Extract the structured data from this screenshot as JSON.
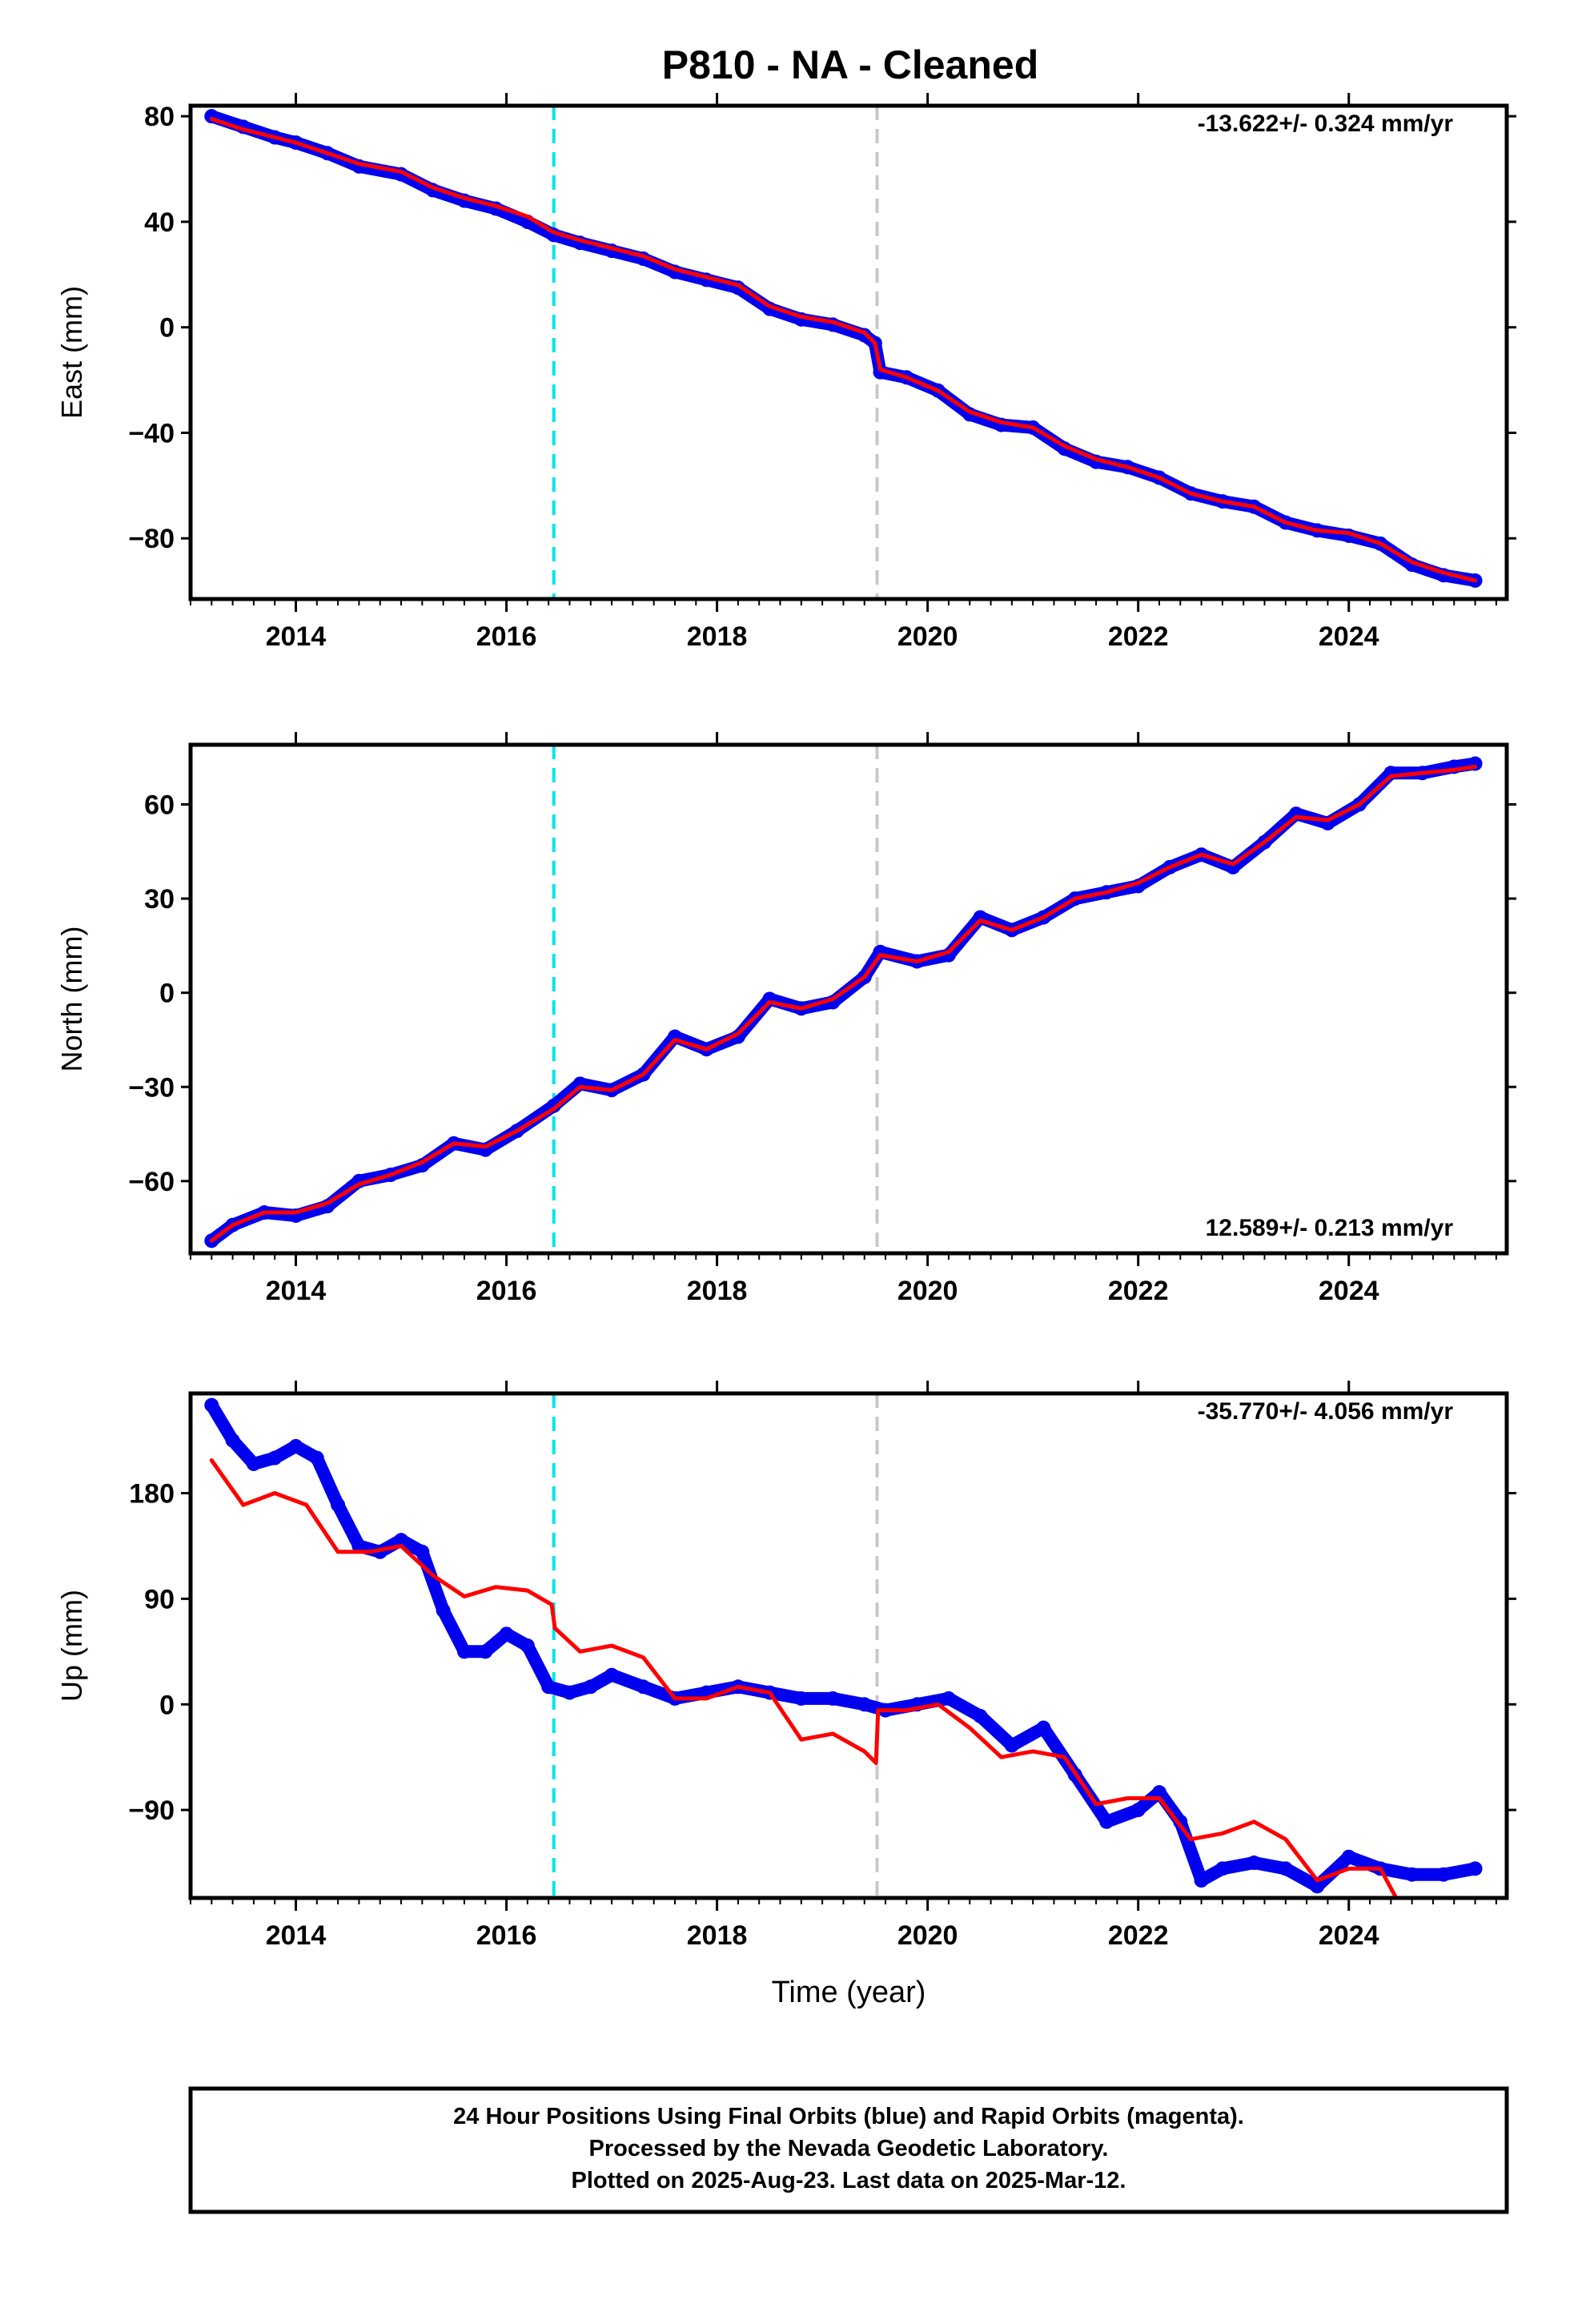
{
  "title": "P810  - NA - Cleaned",
  "colors": {
    "observed": "#0000ee",
    "model": "#ff0000",
    "event_1": "#00e5ee",
    "event_2": "#c8c8c8"
  },
  "chart_data": [
    {
      "type": "scatter",
      "ylabel": "East (mm)",
      "rate_label": "-13.622+/- 0.324 mm/yr",
      "rate_position": "top-right",
      "xlim": [
        2013.0,
        2025.5
      ],
      "ylim": [
        -103,
        84
      ],
      "yticks": [
        80,
        40,
        0,
        -40,
        -80
      ],
      "xticks": [
        2014,
        2016,
        2018,
        2020,
        2022,
        2024
      ],
      "events": [
        2016.45,
        2019.52
      ],
      "series": [
        {
          "role": "observed",
          "x": [
            2013.2,
            2013.5,
            2013.8,
            2014.0,
            2014.3,
            2014.6,
            2015.0,
            2015.3,
            2015.6,
            2015.9,
            2016.2,
            2016.45,
            2016.7,
            2017.0,
            2017.3,
            2017.6,
            2017.9,
            2018.2,
            2018.5,
            2018.8,
            2019.1,
            2019.4,
            2019.5,
            2019.55,
            2019.8,
            2020.1,
            2020.4,
            2020.7,
            2021.0,
            2021.3,
            2021.6,
            2021.9,
            2022.2,
            2022.5,
            2022.8,
            2023.1,
            2023.4,
            2023.7,
            2024.0,
            2024.3,
            2024.6,
            2024.9,
            2025.2
          ],
          "y": [
            80,
            76,
            72,
            70,
            66,
            61,
            58,
            52,
            48,
            45,
            40,
            35,
            32,
            29,
            26,
            21,
            18,
            15,
            7,
            3,
            1,
            -3,
            -6,
            -17,
            -19,
            -24,
            -33,
            -37,
            -38,
            -46,
            -51,
            -53,
            -57,
            -63,
            -66,
            -68,
            -74,
            -77,
            -79,
            -82,
            -90,
            -94,
            -96
          ]
        },
        {
          "role": "model",
          "x": [
            2013.2,
            2013.5,
            2013.8,
            2014.0,
            2014.3,
            2014.6,
            2015.0,
            2015.3,
            2015.6,
            2015.9,
            2016.2,
            2016.45,
            2016.7,
            2017.0,
            2017.3,
            2017.6,
            2017.9,
            2018.2,
            2018.5,
            2018.8,
            2019.1,
            2019.4,
            2019.5,
            2019.55,
            2019.8,
            2020.1,
            2020.4,
            2020.7,
            2021.0,
            2021.3,
            2021.6,
            2021.9,
            2022.2,
            2022.5,
            2022.8,
            2023.1,
            2023.4,
            2023.7,
            2024.0,
            2024.3,
            2024.6,
            2024.9,
            2025.2
          ],
          "y": [
            79,
            75,
            72,
            70,
            66,
            62,
            59,
            53,
            49,
            46,
            42,
            36,
            33,
            30,
            27,
            22,
            19,
            16,
            8,
            4,
            2,
            -2,
            -6,
            -16,
            -19,
            -24,
            -32,
            -36,
            -38,
            -45,
            -50,
            -53,
            -57,
            -63,
            -66,
            -68,
            -74,
            -77,
            -78,
            -82,
            -89,
            -93,
            -96
          ]
        }
      ]
    },
    {
      "type": "scatter",
      "ylabel": "North (mm)",
      "rate_label": "12.589+/- 0.213 mm/yr",
      "rate_position": "bottom-right",
      "xlim": [
        2013.0,
        2025.5
      ],
      "ylim": [
        -83,
        79
      ],
      "yticks": [
        60,
        30,
        0,
        -30,
        -60
      ],
      "xticks": [
        2014,
        2016,
        2018,
        2020,
        2022,
        2024
      ],
      "events": [
        2016.45,
        2019.52
      ],
      "series": [
        {
          "role": "observed",
          "x": [
            2013.2,
            2013.4,
            2013.7,
            2014.0,
            2014.3,
            2014.6,
            2014.9,
            2015.2,
            2015.5,
            2015.8,
            2016.1,
            2016.45,
            2016.7,
            2017.0,
            2017.3,
            2017.6,
            2017.9,
            2018.2,
            2018.5,
            2018.8,
            2019.1,
            2019.4,
            2019.55,
            2019.9,
            2020.2,
            2020.5,
            2020.8,
            2021.1,
            2021.4,
            2021.7,
            2022.0,
            2022.3,
            2022.6,
            2022.9,
            2023.2,
            2023.5,
            2023.8,
            2024.1,
            2024.4,
            2024.7,
            2025.0,
            2025.2
          ],
          "y": [
            -79,
            -74,
            -70,
            -71,
            -68,
            -60,
            -58,
            -55,
            -48,
            -50,
            -44,
            -36,
            -29,
            -31,
            -26,
            -14,
            -18,
            -14,
            -2,
            -5,
            -3,
            5,
            13,
            10,
            12,
            24,
            20,
            24,
            30,
            32,
            34,
            40,
            44,
            40,
            48,
            57,
            54,
            60,
            70,
            70,
            72,
            73
          ]
        },
        {
          "role": "model",
          "x": [
            2013.2,
            2013.4,
            2013.7,
            2014.0,
            2014.3,
            2014.6,
            2014.9,
            2015.2,
            2015.5,
            2015.8,
            2016.1,
            2016.45,
            2016.7,
            2017.0,
            2017.3,
            2017.6,
            2017.9,
            2018.2,
            2018.5,
            2018.8,
            2019.1,
            2019.4,
            2019.55,
            2019.9,
            2020.2,
            2020.5,
            2020.8,
            2021.1,
            2021.4,
            2021.7,
            2022.0,
            2022.3,
            2022.6,
            2022.9,
            2023.2,
            2023.5,
            2023.8,
            2024.1,
            2024.4,
            2024.7,
            2025.0,
            2025.2
          ],
          "y": [
            -79,
            -74,
            -70,
            -70,
            -67,
            -61,
            -58,
            -54,
            -48,
            -49,
            -44,
            -37,
            -30,
            -31,
            -26,
            -15,
            -18,
            -13,
            -3,
            -5,
            -2,
            5,
            12,
            10,
            13,
            23,
            20,
            24,
            30,
            32,
            35,
            40,
            44,
            41,
            48,
            56,
            55,
            60,
            69,
            70,
            71,
            72
          ]
        }
      ]
    },
    {
      "type": "scatter",
      "ylabel": "Up (mm)",
      "rate_label": "-35.770+/- 4.056 mm/yr",
      "rate_position": "top-right",
      "xlim": [
        2013.0,
        2025.5
      ],
      "ylim": [
        -165,
        265
      ],
      "yticks": [
        180,
        90,
        0,
        -90
      ],
      "xticks": [
        2014,
        2016,
        2018,
        2020,
        2022,
        2024
      ],
      "events": [
        2016.45,
        2019.52
      ],
      "xlabel": "Time (year)",
      "series": [
        {
          "role": "observed",
          "x": [
            2013.2,
            2013.4,
            2013.6,
            2013.8,
            2014.0,
            2014.2,
            2014.4,
            2014.6,
            2014.8,
            2015.0,
            2015.2,
            2015.4,
            2015.6,
            2015.8,
            2016.0,
            2016.2,
            2016.4,
            2016.6,
            2016.8,
            2017.0,
            2017.3,
            2017.6,
            2017.9,
            2018.2,
            2018.5,
            2018.8,
            2019.1,
            2019.4,
            2019.6,
            2019.9,
            2020.2,
            2020.5,
            2020.8,
            2021.1,
            2021.4,
            2021.7,
            2022.0,
            2022.2,
            2022.4,
            2022.6,
            2022.8,
            2023.1,
            2023.4,
            2023.7,
            2024.0,
            2024.3,
            2024.6,
            2024.9,
            2025.2
          ],
          "y": [
            255,
            225,
            205,
            210,
            220,
            210,
            170,
            135,
            130,
            140,
            130,
            80,
            45,
            45,
            60,
            50,
            15,
            10,
            15,
            25,
            15,
            5,
            10,
            15,
            10,
            5,
            5,
            0,
            -5,
            0,
            5,
            -10,
            -35,
            -20,
            -60,
            -100,
            -90,
            -75,
            -100,
            -150,
            -140,
            -135,
            -140,
            -155,
            -130,
            -140,
            -145,
            -145,
            -140
          ]
        },
        {
          "role": "model",
          "x": [
            2013.2,
            2013.5,
            2013.8,
            2014.1,
            2014.4,
            2014.7,
            2015.0,
            2015.3,
            2015.6,
            2015.9,
            2016.2,
            2016.43,
            2016.46,
            2016.7,
            2017.0,
            2017.3,
            2017.6,
            2017.9,
            2018.2,
            2018.5,
            2018.8,
            2019.1,
            2019.4,
            2019.51,
            2019.53,
            2019.8,
            2020.1,
            2020.4,
            2020.7,
            2021.0,
            2021.3,
            2021.6,
            2021.9,
            2022.2,
            2022.5,
            2022.8,
            2023.1,
            2023.4,
            2023.7,
            2024.0,
            2024.3,
            2024.45
          ],
          "y": [
            208,
            170,
            180,
            170,
            130,
            130,
            135,
            110,
            92,
            100,
            97,
            85,
            65,
            45,
            50,
            40,
            5,
            5,
            15,
            10,
            -30,
            -25,
            -40,
            -50,
            -5,
            -5,
            0,
            -20,
            -45,
            -40,
            -45,
            -85,
            -80,
            -80,
            -115,
            -110,
            -100,
            -115,
            -150,
            -140,
            -140,
            -165
          ]
        }
      ]
    }
  ],
  "footer": {
    "line1": "24 Hour Positions Using Final Orbits (blue) and Rapid Orbits (magenta).",
    "line2": "Processed by the Nevada Geodetic Laboratory.",
    "line3": "Plotted on 2025-Aug-23. Last data on 2025-Mar-12."
  }
}
